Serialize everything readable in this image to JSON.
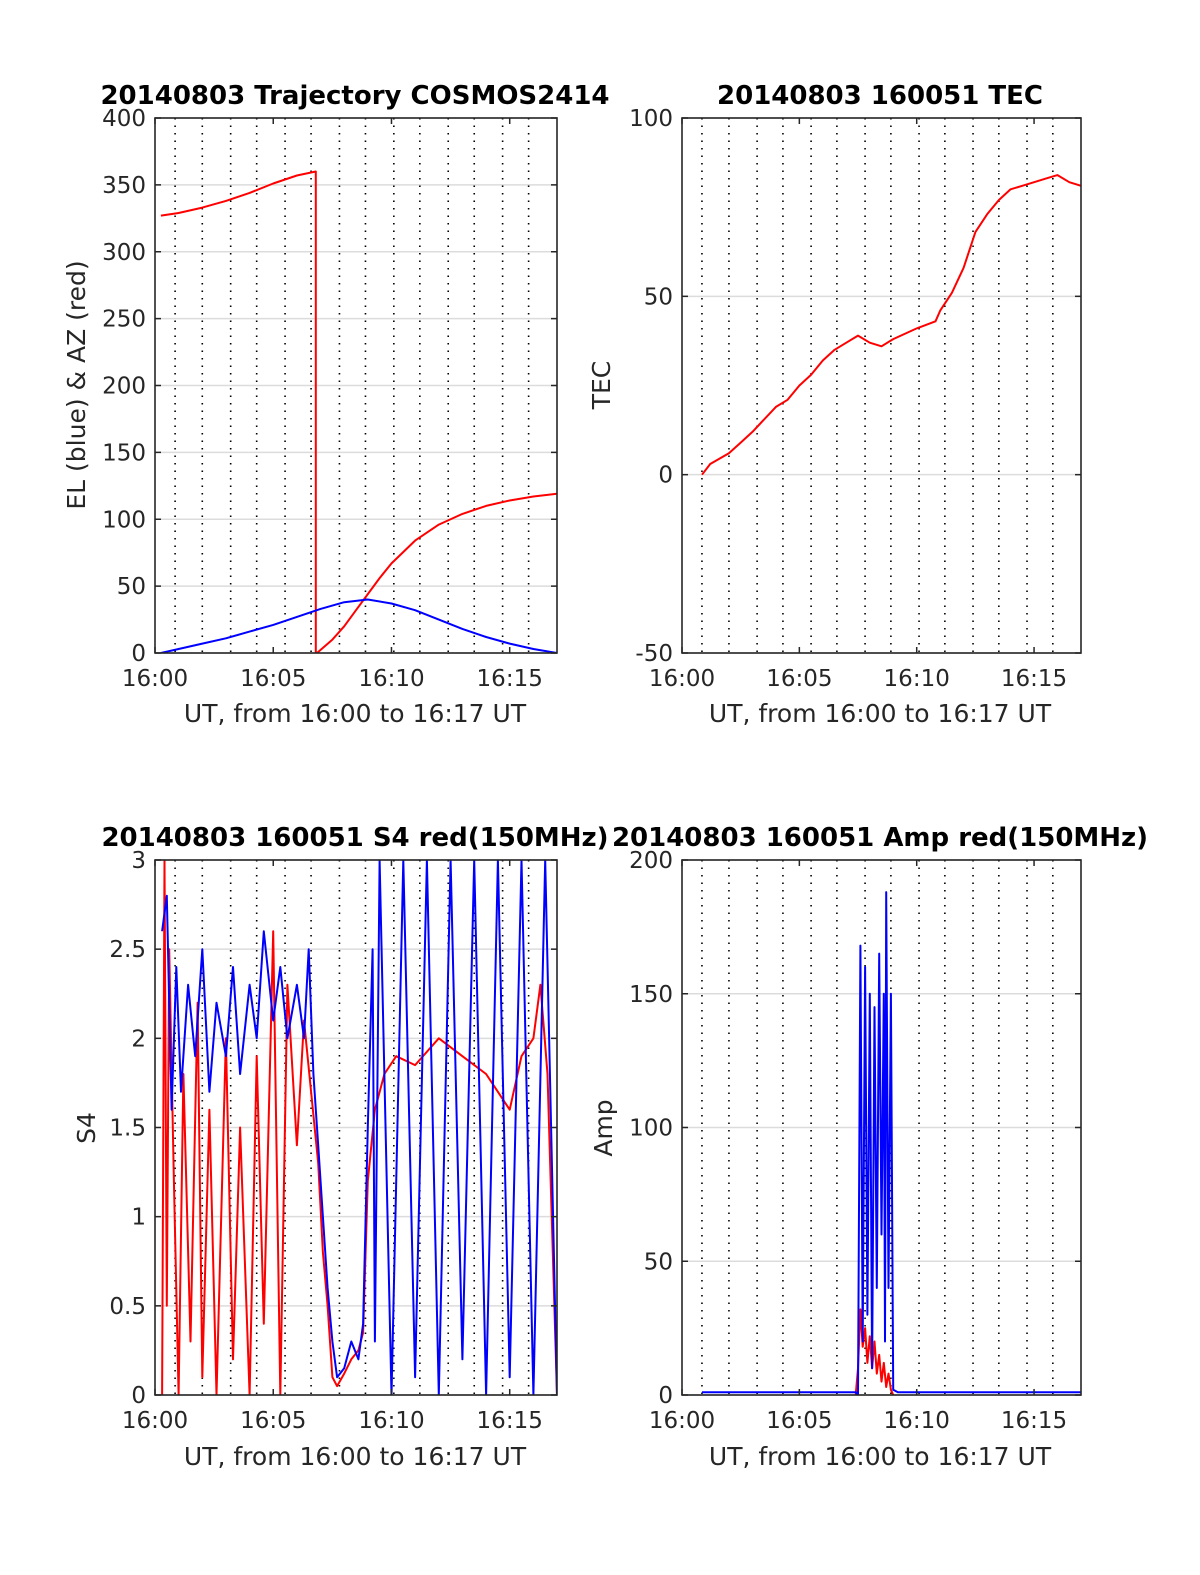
{
  "colors": {
    "red": "#ff0000",
    "blue": "#0000ff",
    "axis": "#262626",
    "grid": "#dcdcdc",
    "vgrid": "#000000"
  },
  "chart_data": [
    {
      "type": "line",
      "title": "20140803 Trajectory COSMOS2414",
      "xlabel": "UT, from 16:00 to 16:17 UT",
      "ylabel": "EL (blue) & AZ (red)",
      "xlim": [
        0,
        17
      ],
      "ylim": [
        0,
        400
      ],
      "xticks": [
        0,
        5,
        10,
        15
      ],
      "xticklabels": [
        "16:00",
        "16:05",
        "16:10",
        "16:15"
      ],
      "yticks": [
        0,
        50,
        100,
        150,
        200,
        250,
        300,
        350,
        400
      ],
      "yticklabels": [
        "0",
        "50",
        "100",
        "150",
        "200",
        "250",
        "300",
        "350",
        "400"
      ],
      "grid": "on",
      "series": [
        {
          "color": "red",
          "x": [
            0.25,
            1,
            2,
            3,
            4,
            5,
            6,
            6.8,
            6.8,
            6.85,
            7.5,
            8,
            8.5,
            9,
            9.5,
            10,
            11,
            12,
            13,
            14,
            15,
            16,
            17
          ],
          "y": [
            327,
            329,
            333,
            338,
            344,
            351,
            357,
            360,
            0,
            0,
            10,
            20,
            32,
            44,
            56,
            67,
            84,
            96,
            104,
            110,
            114,
            117,
            119
          ]
        },
        {
          "color": "blue",
          "x": [
            0.25,
            1,
            2,
            3,
            4,
            5,
            6,
            7,
            8,
            9,
            10,
            11,
            12,
            13,
            14,
            15,
            16,
            17
          ],
          "y": [
            0,
            3,
            7,
            11,
            16,
            21,
            27,
            33,
            38,
            40,
            37,
            32,
            25,
            18,
            12,
            7,
            3,
            0
          ]
        }
      ]
    },
    {
      "type": "line",
      "title": "20140803 160051 TEC",
      "xlabel": "UT, from 16:00 to 16:17 UT",
      "ylabel": "TEC",
      "xlim": [
        0,
        17
      ],
      "ylim": [
        -50,
        100
      ],
      "xticks": [
        0,
        5,
        10,
        15
      ],
      "xticklabels": [
        "16:00",
        "16:05",
        "16:10",
        "16:15"
      ],
      "yticks": [
        -50,
        0,
        50,
        100
      ],
      "yticklabels": [
        "-50",
        "0",
        "50",
        "100"
      ],
      "grid": "on",
      "series": [
        {
          "color": "red",
          "x": [
            0.85,
            1.2,
            2,
            2.5,
            3,
            4,
            4.5,
            5,
            5.5,
            6,
            6.5,
            7,
            7.5,
            8,
            8.5,
            9,
            10,
            10.8,
            11,
            11.5,
            12,
            12.5,
            13,
            13.5,
            14,
            14.5,
            15,
            15.5,
            16,
            16.5,
            17
          ],
          "y": [
            0,
            3,
            6,
            9,
            12,
            19,
            21,
            25,
            28,
            32,
            35,
            37,
            39,
            37,
            36,
            38,
            41,
            43,
            46,
            51,
            58,
            68,
            73,
            77,
            80,
            81,
            82,
            83,
            84,
            82,
            81
          ]
        }
      ]
    },
    {
      "type": "line",
      "title": "20140803 160051 S4 red(150MHz)",
      "xlabel": "UT, from 16:00 to 16:17 UT",
      "ylabel": "S4",
      "xlim": [
        0,
        17
      ],
      "ylim": [
        0,
        3
      ],
      "xticks": [
        0,
        5,
        10,
        15
      ],
      "xticklabels": [
        "16:00",
        "16:05",
        "16:10",
        "16:15"
      ],
      "yticks": [
        0,
        0.5,
        1,
        1.5,
        2,
        2.5,
        3
      ],
      "yticklabels": [
        "0",
        "0.5",
        "1",
        "1.5",
        "2",
        "2.5",
        "3"
      ],
      "grid": "on",
      "series": [
        {
          "color": "red",
          "x": [
            0.3,
            0.4,
            0.5,
            0.6,
            0.8,
            1.0,
            1.2,
            1.5,
            1.8,
            2.0,
            2.3,
            2.6,
            3.0,
            3.3,
            3.6,
            4.0,
            4.3,
            4.6,
            5.0,
            5.3,
            5.6,
            6.0,
            6.3,
            6.6,
            6.9,
            7.1,
            7.3,
            7.5,
            7.7,
            8.0,
            8.3,
            8.6,
            8.8,
            9.0,
            9.3,
            9.7,
            10.2,
            11,
            12,
            13,
            14,
            14.5,
            15,
            15.5,
            16,
            16.3,
            16.6,
            17
          ],
          "y": [
            0,
            3,
            0.5,
            2.5,
            1.2,
            0,
            1.8,
            0.3,
            2.2,
            0.1,
            1.6,
            0,
            2.0,
            0.2,
            1.5,
            0,
            1.9,
            0.4,
            2.6,
            0,
            2.3,
            1.4,
            2.1,
            1.7,
            1.3,
            0.8,
            0.5,
            0.1,
            0.05,
            0.12,
            0.2,
            0.25,
            0.35,
            1.2,
            1.6,
            1.8,
            1.9,
            1.85,
            2.0,
            1.9,
            1.8,
            1.7,
            1.6,
            1.9,
            2.0,
            2.3,
            1.8,
            0
          ]
        },
        {
          "color": "blue",
          "x": [
            0.3,
            0.5,
            0.7,
            0.9,
            1.1,
            1.4,
            1.7,
            2.0,
            2.3,
            2.6,
            3.0,
            3.3,
            3.6,
            4.0,
            4.3,
            4.6,
            5.0,
            5.3,
            5.6,
            6.0,
            6.3,
            6.5,
            6.7,
            6.9,
            7.1,
            7.3,
            7.5,
            7.7,
            8.0,
            8.3,
            8.6,
            8.8,
            9.0,
            9.2,
            9.3,
            9.5,
            10,
            10.5,
            11,
            11.5,
            12,
            12.5,
            13,
            13.5,
            14,
            14.5,
            15,
            15.5,
            16,
            16.5,
            17
          ],
          "y": [
            2.6,
            2.8,
            1.6,
            2.4,
            1.7,
            2.3,
            1.9,
            2.5,
            1.7,
            2.2,
            1.9,
            2.4,
            1.8,
            2.3,
            2.0,
            2.6,
            2.1,
            2.4,
            2.0,
            2.3,
            2.0,
            2.5,
            1.8,
            1.4,
            1.0,
            0.6,
            0.3,
            0.1,
            0.15,
            0.3,
            0.2,
            0.4,
            1.5,
            2.5,
            0.3,
            3,
            0,
            3,
            0.1,
            3,
            0,
            3,
            0.2,
            3,
            0,
            3,
            0.1,
            3,
            0,
            3,
            0
          ]
        }
      ]
    },
    {
      "type": "line",
      "title": "20140803 160051 Amp red(150MHz)",
      "xlabel": "UT, from 16:00 to 16:17 UT",
      "ylabel": "Amp",
      "xlim": [
        0,
        17
      ],
      "ylim": [
        0,
        200
      ],
      "xticks": [
        0,
        5,
        10,
        15
      ],
      "xticklabels": [
        "16:00",
        "16:05",
        "16:10",
        "16:15"
      ],
      "yticks": [
        0,
        50,
        100,
        150,
        200
      ],
      "yticklabels": [
        "0",
        "50",
        "100",
        "150",
        "200"
      ],
      "grid": "on",
      "series": [
        {
          "color": "red",
          "x": [
            7.4,
            7.5,
            7.6,
            7.7,
            7.8,
            7.9,
            8.0,
            8.1,
            8.2,
            8.3,
            8.4,
            8.5,
            8.6,
            8.7,
            8.8,
            8.9,
            9.0
          ],
          "y": [
            0,
            10,
            32,
            18,
            25,
            12,
            22,
            10,
            20,
            8,
            15,
            5,
            12,
            3,
            8,
            2,
            0
          ]
        },
        {
          "color": "blue",
          "x": [
            0.85,
            2,
            3,
            4,
            5,
            6,
            7,
            7.4,
            7.5,
            7.6,
            7.7,
            7.8,
            7.9,
            8.0,
            8.1,
            8.2,
            8.3,
            8.4,
            8.5,
            8.6,
            8.65,
            8.7,
            8.8,
            8.9,
            9.0,
            9.2,
            10,
            11,
            12,
            13,
            14,
            15,
            16,
            17
          ],
          "y": [
            1,
            1,
            1,
            1,
            1,
            1,
            1,
            1,
            0,
            168,
            20,
            160,
            30,
            150,
            10,
            145,
            40,
            165,
            60,
            150,
            20,
            188,
            40,
            150,
            2,
            1,
            1,
            1,
            1,
            1,
            1,
            1,
            1,
            1
          ]
        }
      ]
    }
  ]
}
